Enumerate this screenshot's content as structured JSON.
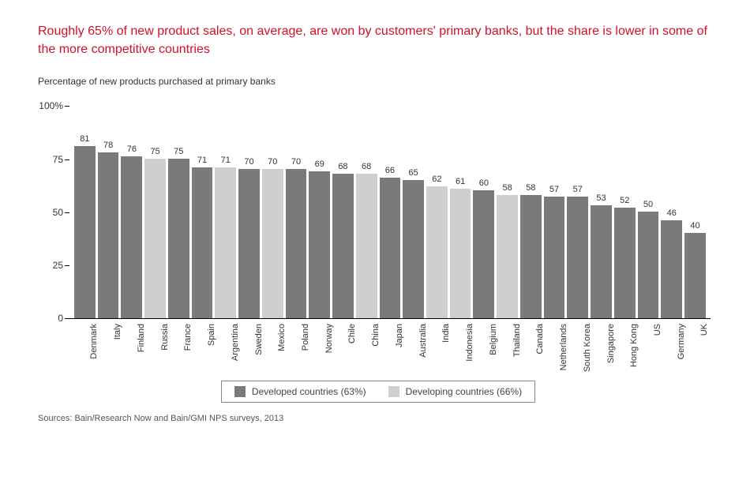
{
  "title": "Roughly 65% of new product sales, on average, are won by customers' primary banks, but the share is lower in some of the more competitive countries",
  "subtitle": "Percentage of new products purchased at primary banks",
  "source": "Sources: Bain/Research Now and Bain/GMI NPS surveys, 2013",
  "chart": {
    "type": "bar",
    "ymax": 100,
    "yticks": [
      0,
      25,
      50,
      75,
      100
    ],
    "ytick_label_100": "100%",
    "colors": {
      "developed": "#7a7a7a",
      "developing": "#cfcfcf",
      "axis": "#000000",
      "text": "#333333",
      "background": "#ffffff"
    },
    "bar_value_fontsize": 11,
    "xlabel_fontsize": 11,
    "ytick_fontsize": 12,
    "data": [
      {
        "country": "Denmark",
        "value": 81,
        "group": "developed"
      },
      {
        "country": "Italy",
        "value": 78,
        "group": "developed"
      },
      {
        "country": "Finland",
        "value": 76,
        "group": "developed"
      },
      {
        "country": "Russia",
        "value": 75,
        "group": "developing"
      },
      {
        "country": "France",
        "value": 75,
        "group": "developed"
      },
      {
        "country": "Spain",
        "value": 71,
        "group": "developed"
      },
      {
        "country": "Argentina",
        "value": 71,
        "group": "developing"
      },
      {
        "country": "Sweden",
        "value": 70,
        "group": "developed"
      },
      {
        "country": "Mexico",
        "value": 70,
        "group": "developing"
      },
      {
        "country": "Poland",
        "value": 70,
        "group": "developed"
      },
      {
        "country": "Norway",
        "value": 69,
        "group": "developed"
      },
      {
        "country": "Chile",
        "value": 68,
        "group": "developed"
      },
      {
        "country": "China",
        "value": 68,
        "group": "developing"
      },
      {
        "country": "Japan",
        "value": 66,
        "group": "developed"
      },
      {
        "country": "Australia",
        "value": 65,
        "group": "developed"
      },
      {
        "country": "India",
        "value": 62,
        "group": "developing"
      },
      {
        "country": "Indonesia",
        "value": 61,
        "group": "developing"
      },
      {
        "country": "Belgium",
        "value": 60,
        "group": "developed"
      },
      {
        "country": "Thailand",
        "value": 58,
        "group": "developing"
      },
      {
        "country": "Canada",
        "value": 58,
        "group": "developed"
      },
      {
        "country": "Netherlands",
        "value": 57,
        "group": "developed"
      },
      {
        "country": "South Korea",
        "value": 57,
        "group": "developed"
      },
      {
        "country": "Singapore",
        "value": 53,
        "group": "developed"
      },
      {
        "country": "Hong Kong",
        "value": 52,
        "group": "developed"
      },
      {
        "country": "US",
        "value": 50,
        "group": "developed"
      },
      {
        "country": "Germany",
        "value": 46,
        "group": "developed"
      },
      {
        "country": "UK",
        "value": 40,
        "group": "developed"
      }
    ],
    "legend": {
      "developed_label": "Developed countries (63%)",
      "developing_label": "Developing countries (66%)"
    }
  }
}
